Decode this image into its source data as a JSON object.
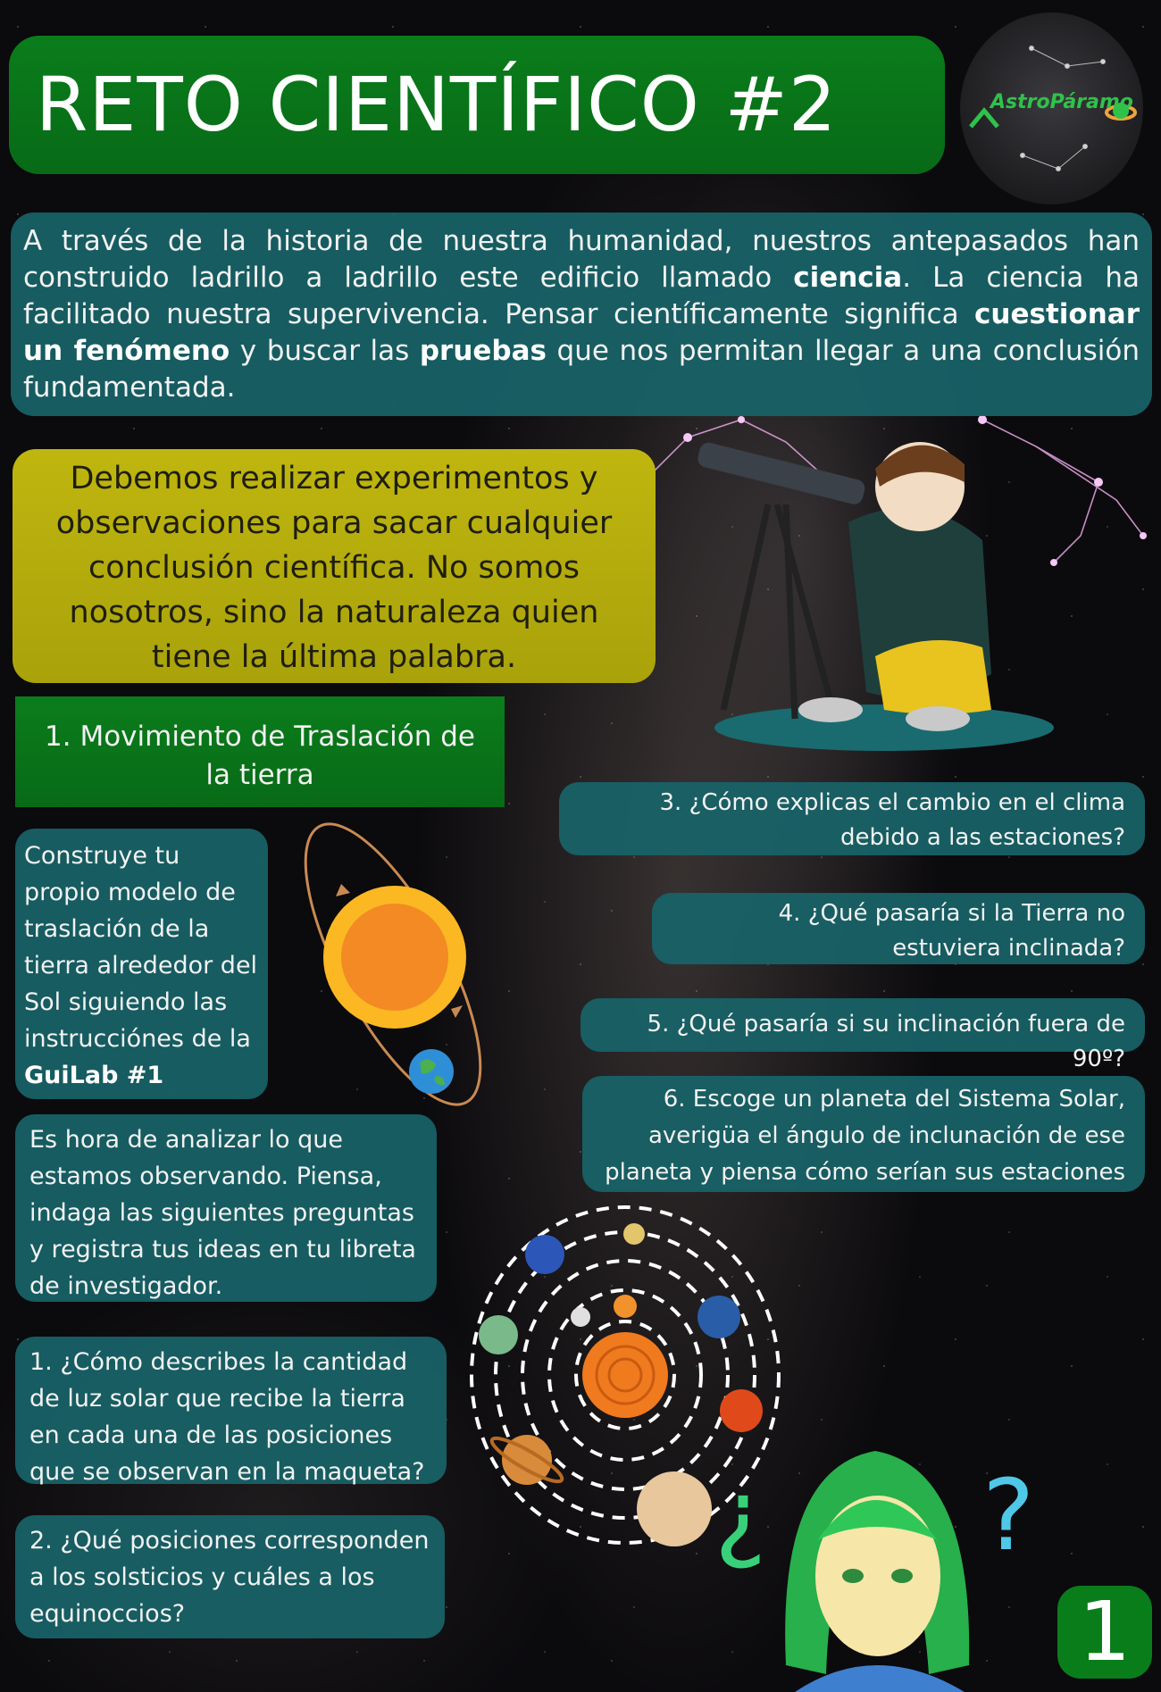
{
  "title": "RETO CIENTÍFICO #2",
  "logo": {
    "text": "AstroPáramo",
    "icon": "telescope-planet-icon"
  },
  "intro": {
    "p1": "A través de la historia de nuestra humanidad, nuestros antepasados han construido ladrillo a ladrillo este edificio llamado ",
    "b1": "ciencia",
    "p2": ". La ciencia ha facilitado nuestra supervivencia. Pensar científicamente significa ",
    "b2": "cuestionar un fenómeno",
    "p3": " y buscar las ",
    "b3": "pruebas",
    "p4": " que nos permitan llegar a una conclusión fundamentada."
  },
  "callout": "Debemos realizar experimentos y observaciones para sacar cualquier conclusión científica. No somos nosotros, sino la naturaleza quien tiene la última palabra.",
  "section_title": "1. Movimiento de Traslación de la tierra",
  "build": {
    "text": "Construye tu propio modelo de traslación de la tierra alrededor del Sol siguiendo las instrucciónes de la ",
    "bold": "GuiLab #1"
  },
  "analyze": "Es hora de analizar lo que estamos observando. Piensa, indaga las siguientes preguntas y registra tus ideas en tu libreta de investigador.",
  "questions": {
    "q1": "1. ¿Cómo describes la cantidad de luz solar que recibe la tierra en cada una de las posiciones que se observan en la maqueta?",
    "q2": "2. ¿Qué posiciones corresponden a los solsticios y cuáles a los equinoccios?",
    "q3": "3. ¿Cómo explicas el cambio en el clima debido a las estaciones?",
    "q4": "4. ¿Qué pasaría si la Tierra no estuviera inclinada?",
    "q5": "5. ¿Qué pasaría si su inclinación fuera de 90º?",
    "q6": "6. Escoge un planeta del Sistema Solar, averigüa el ángulo de inclunación de ese planeta y piensa cómo serían sus estaciones"
  },
  "page_number": "1",
  "colors": {
    "title_green": "#0a7d1b",
    "teal": "#186368",
    "callout_yellow": "#bfb60f",
    "sun_orange": "#f38a23",
    "sun_yellow": "#fbb823"
  }
}
